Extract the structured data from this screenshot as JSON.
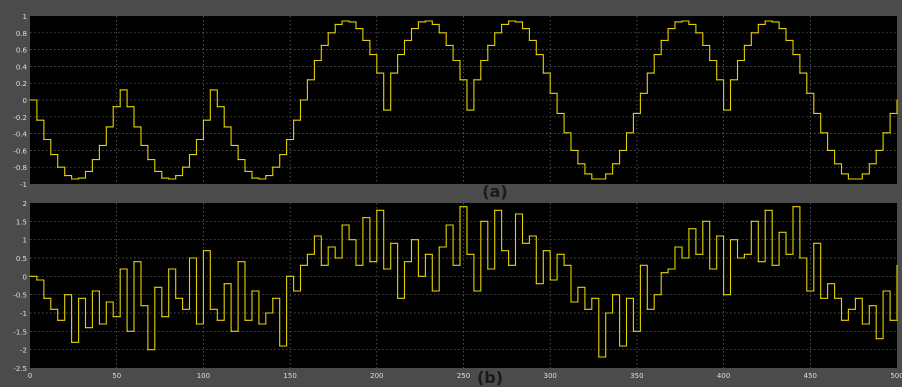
{
  "colors": {
    "frame": "#4b4b4b",
    "plot_bg": "#000000",
    "grid": "#6f6f6f",
    "trace": "#e3d200",
    "tick_text": "#dedede",
    "caption_text": "#1a1a1a"
  },
  "chart_data": [
    {
      "type": "line",
      "step": true,
      "caption": "(a)",
      "xlim": [
        0,
        500
      ],
      "ylim": [
        -1,
        1
      ],
      "xticks": [],
      "yticks": [
        1,
        0.8,
        0.6,
        0.4,
        0.2,
        0,
        -0.2,
        -0.4,
        -0.6,
        -0.8,
        -1
      ],
      "ytick_labels": [
        "1",
        "0.8",
        "0.6",
        "0.4",
        "0.2",
        "0",
        "-0.2",
        "-0.4",
        "-0.6",
        "-0.8",
        "-1"
      ],
      "grid": true,
      "x": [
        0,
        4,
        8,
        12,
        16,
        20,
        24,
        28,
        32,
        36,
        40,
        44,
        48,
        52,
        56,
        60,
        64,
        68,
        72,
        76,
        80,
        84,
        88,
        92,
        96,
        100,
        104,
        108,
        112,
        116,
        120,
        124,
        128,
        132,
        136,
        140,
        144,
        148,
        152,
        156,
        160,
        164,
        168,
        172,
        176,
        180,
        184,
        188,
        192,
        196,
        200,
        204,
        208,
        212,
        216,
        220,
        224,
        228,
        232,
        236,
        240,
        244,
        248,
        252,
        256,
        260,
        264,
        268,
        272,
        276,
        280,
        284,
        288,
        292,
        296,
        300,
        304,
        308,
        312,
        316,
        320,
        324,
        328,
        332,
        336,
        340,
        344,
        348,
        352,
        356,
        360,
        364,
        368,
        372,
        376,
        380,
        384,
        388,
        392,
        396,
        400,
        404,
        408,
        412,
        416,
        420,
        424,
        428,
        432,
        436,
        440,
        444,
        448,
        452,
        456,
        460,
        464,
        468,
        472,
        476,
        480,
        484,
        488,
        492,
        496,
        500
      ],
      "y": [
        0,
        -0.24,
        -0.47,
        -0.65,
        -0.8,
        -0.9,
        -0.94,
        -0.93,
        -0.85,
        -0.71,
        -0.54,
        -0.32,
        -0.08,
        0.12,
        -0.08,
        -0.32,
        -0.54,
        -0.71,
        -0.85,
        -0.93,
        -0.94,
        -0.9,
        -0.8,
        -0.65,
        -0.47,
        -0.24,
        0.12,
        -0.08,
        -0.32,
        -0.54,
        -0.71,
        -0.85,
        -0.93,
        -0.94,
        -0.9,
        -0.8,
        -0.65,
        -0.47,
        -0.24,
        0,
        0.24,
        0.47,
        0.65,
        0.8,
        0.9,
        0.94,
        0.93,
        0.85,
        0.71,
        0.54,
        0.32,
        -0.12,
        0.32,
        0.54,
        0.71,
        0.85,
        0.93,
        0.94,
        0.9,
        0.8,
        0.65,
        0.47,
        0.24,
        -0.12,
        0.24,
        0.47,
        0.65,
        0.8,
        0.9,
        0.94,
        0.93,
        0.85,
        0.71,
        0.54,
        0.32,
        0.08,
        -0.16,
        -0.39,
        -0.6,
        -0.76,
        -0.88,
        -0.94,
        -0.94,
        -0.88,
        -0.76,
        -0.6,
        -0.39,
        -0.16,
        0.08,
        0.32,
        0.54,
        0.71,
        0.85,
        0.93,
        0.94,
        0.9,
        0.8,
        0.65,
        0.47,
        0.24,
        -0.12,
        0.24,
        0.47,
        0.65,
        0.8,
        0.9,
        0.94,
        0.93,
        0.85,
        0.71,
        0.54,
        0.32,
        0.08,
        -0.16,
        -0.39,
        -0.6,
        -0.76,
        -0.88,
        -0.94,
        -0.94,
        -0.88,
        -0.76,
        -0.6,
        -0.39,
        -0.16,
        0
      ]
    },
    {
      "type": "line",
      "step": true,
      "caption": "(b)",
      "xlim": [
        0,
        500
      ],
      "ylim": [
        -2.5,
        2
      ],
      "xticks": [
        0,
        50,
        100,
        150,
        200,
        250,
        300,
        350,
        400,
        450,
        500
      ],
      "xtick_labels": [
        "0",
        "50",
        "100",
        "150",
        "200",
        "250",
        "300",
        "350",
        "400",
        "450",
        "500"
      ],
      "yticks": [
        2,
        1.5,
        1,
        0.5,
        0,
        -0.5,
        -1,
        -1.5,
        -2,
        -2.5
      ],
      "ytick_labels": [
        "2",
        "1.5",
        "1",
        "0.5",
        "0",
        "-0.5",
        "-1",
        "-1.5",
        "-2",
        "-2.5"
      ],
      "grid": true,
      "x": [
        0,
        4,
        8,
        12,
        16,
        20,
        24,
        28,
        32,
        36,
        40,
        44,
        48,
        52,
        56,
        60,
        64,
        68,
        72,
        76,
        80,
        84,
        88,
        92,
        96,
        100,
        104,
        108,
        112,
        116,
        120,
        124,
        128,
        132,
        136,
        140,
        144,
        148,
        152,
        156,
        160,
        164,
        168,
        172,
        176,
        180,
        184,
        188,
        192,
        196,
        200,
        204,
        208,
        212,
        216,
        220,
        224,
        228,
        232,
        236,
        240,
        244,
        248,
        252,
        256,
        260,
        264,
        268,
        272,
        276,
        280,
        284,
        288,
        292,
        296,
        300,
        304,
        308,
        312,
        316,
        320,
        324,
        328,
        332,
        336,
        340,
        344,
        348,
        352,
        356,
        360,
        364,
        368,
        372,
        376,
        380,
        384,
        388,
        392,
        396,
        400,
        404,
        408,
        412,
        416,
        420,
        424,
        428,
        432,
        436,
        440,
        444,
        448,
        452,
        456,
        460,
        464,
        468,
        472,
        476,
        480,
        484,
        488,
        492,
        496,
        500
      ],
      "y": [
        0,
        -0.1,
        -0.6,
        -0.9,
        -1.2,
        -0.5,
        -1.8,
        -0.6,
        -1.4,
        -0.4,
        -1.3,
        -0.7,
        -1.1,
        0.2,
        -1.5,
        0.4,
        -0.8,
        -2.0,
        -0.3,
        -1.1,
        0.2,
        -0.6,
        -0.9,
        0.5,
        -1.3,
        0.7,
        -0.9,
        -1.2,
        -0.2,
        -1.5,
        0.4,
        -1.2,
        -0.4,
        -1.3,
        -1.0,
        -0.6,
        -1.9,
        0.0,
        -0.4,
        0.3,
        0.6,
        1.1,
        0.3,
        0.8,
        0.5,
        1.4,
        1.0,
        0.3,
        1.6,
        0.4,
        1.8,
        0.2,
        0.9,
        -0.6,
        0.4,
        1.0,
        0.0,
        0.6,
        -0.4,
        0.8,
        1.4,
        0.3,
        1.9,
        0.6,
        -0.4,
        1.5,
        0.2,
        1.8,
        0.7,
        0.3,
        1.7,
        0.9,
        1.1,
        -0.2,
        0.7,
        -0.1,
        0.6,
        0.3,
        -0.7,
        -0.3,
        -0.9,
        -0.6,
        -2.2,
        -1.0,
        -0.5,
        -1.9,
        -0.6,
        -1.5,
        0.3,
        -0.9,
        -0.5,
        0.1,
        0.2,
        0.8,
        0.5,
        1.3,
        0.6,
        1.5,
        0.2,
        1.1,
        -0.5,
        1.0,
        0.5,
        0.6,
        1.5,
        0.4,
        1.8,
        0.3,
        1.2,
        0.6,
        1.9,
        0.5,
        -0.4,
        0.9,
        -0.6,
        -0.2,
        -0.6,
        -1.2,
        -0.9,
        -0.6,
        -1.3,
        -0.8,
        -1.7,
        -0.4,
        -1.2,
        0.3
      ]
    }
  ]
}
